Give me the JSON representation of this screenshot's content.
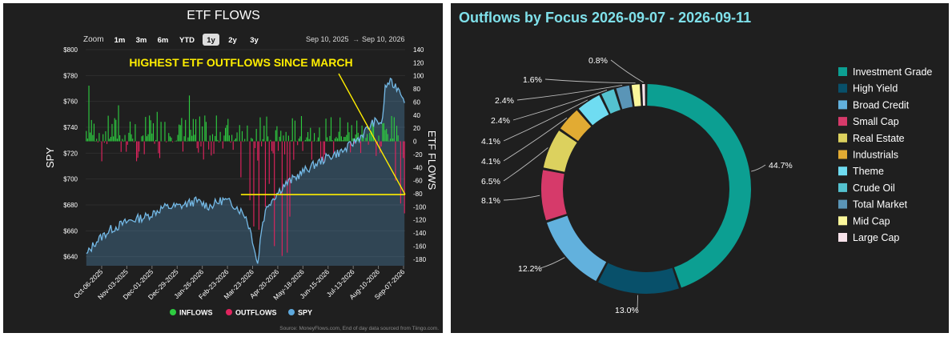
{
  "left": {
    "title": "ETF FLOWS",
    "zoom_label": "Zoom",
    "zoom_options": [
      "1m",
      "3m",
      "6m",
      "YTD",
      "1y",
      "2y",
      "3y"
    ],
    "zoom_selected": "1y",
    "range_from": "Sep 10, 2025",
    "range_arrow": "→",
    "range_to": "Sep 10, 2026",
    "annotation": "HIGHEST ETF OUTFLOWS SINCE MARCH",
    "source": "Source: MoneyFlows.com, End of day data sourced from Tiingo.com.",
    "legend": [
      {
        "label": "INFLOWS",
        "color": "#2ecc40"
      },
      {
        "label": "OUTFLOWS",
        "color": "#e0245e"
      },
      {
        "label": "SPY",
        "color": "#5ea9dd"
      }
    ]
  },
  "chart_data": [
    {
      "type": "bar",
      "title": "ETF FLOWS",
      "ylabel": "SPY",
      "y2label": "ETF FLOWS",
      "ylim": [
        633,
        800
      ],
      "y2lim": [
        -190,
        140
      ],
      "yticks": [
        "$800",
        "$780",
        "$760",
        "$740",
        "$720",
        "$700",
        "$680",
        "$660",
        "$640"
      ],
      "y2ticks": [
        "140",
        "120",
        "100",
        "80",
        "60",
        "40",
        "20",
        "0",
        "-20",
        "-40",
        "-60",
        "-80",
        "-100",
        "-120",
        "-140",
        "-160",
        "-180"
      ],
      "xticks": [
        "Oct-06-2025",
        "Nov-03-2025",
        "Dec-01-2025",
        "Dec-29-2025",
        "Jan-26-2026",
        "Feb-23-2026",
        "Mar-23-2026",
        "Apr-20-2026",
        "May-18-2026",
        "Jun-15-2026",
        "Jul-13-2026",
        "Aug-10-2026",
        "Sep-07-2026"
      ],
      "spy_anchors": [
        [
          0,
          641
        ],
        [
          8,
          651
        ],
        [
          22,
          661
        ],
        [
          40,
          668
        ],
        [
          55,
          671
        ],
        [
          70,
          678
        ],
        [
          85,
          679
        ],
        [
          100,
          683
        ],
        [
          112,
          679
        ],
        [
          125,
          684
        ],
        [
          135,
          680
        ],
        [
          145,
          672
        ],
        [
          150,
          659
        ],
        [
          153,
          648
        ],
        [
          156,
          633
        ],
        [
          160,
          664
        ],
        [
          165,
          680
        ],
        [
          180,
          695
        ],
        [
          200,
          707
        ],
        [
          220,
          717
        ],
        [
          235,
          722
        ],
        [
          250,
          733
        ],
        [
          262,
          744
        ],
        [
          270,
          744
        ],
        [
          272,
          770
        ],
        [
          276,
          775
        ],
        [
          285,
          770
        ],
        [
          290,
          762
        ]
      ],
      "spy_marker_level": 688,
      "flow_pattern": {
        "count": 248,
        "amplitude": 40,
        "seed": 7
      },
      "flow_highlights": [
        [
          2,
          85
        ],
        [
          25,
          55
        ],
        [
          55,
          45
        ],
        [
          80,
          70
        ],
        [
          120,
          -55
        ],
        [
          127,
          -90
        ],
        [
          130,
          -130
        ],
        [
          134,
          -135
        ],
        [
          139,
          -100
        ],
        [
          142,
          -65
        ],
        [
          146,
          -160
        ],
        [
          152,
          -175
        ],
        [
          156,
          -170
        ],
        [
          158,
          -115
        ],
        [
          175,
          -28
        ],
        [
          240,
          -60
        ],
        [
          244,
          -95
        ],
        [
          247,
          -110
        ]
      ],
      "series": [
        {
          "name": "INFLOWS",
          "color": "#2ecc40"
        },
        {
          "name": "OUTFLOWS",
          "color": "#e0245e"
        },
        {
          "name": "SPY",
          "color": "#5ea9dd"
        }
      ]
    },
    {
      "type": "pie",
      "title": "Outflows by Focus 2026-09-07 - 2026-09-11",
      "legend_position": "right",
      "slices": [
        {
          "label": "Investment Grade",
          "value": 44.7,
          "color": "#0c9f92"
        },
        {
          "label": "High Yield",
          "value": 13.0,
          "color": "#08506a"
        },
        {
          "label": "Broad Credit",
          "value": 12.2,
          "color": "#62b1dd"
        },
        {
          "label": "Small Cap",
          "value": 8.1,
          "color": "#d63a6a"
        },
        {
          "label": "Real Estate",
          "value": 6.5,
          "color": "#dcd15e"
        },
        {
          "label": "Industrials",
          "value": 4.1,
          "color": "#e2ab33"
        },
        {
          "label": "Theme",
          "value": 4.1,
          "color": "#6fdcf1"
        },
        {
          "label": "Crude Oil",
          "value": 2.4,
          "color": "#54c2cf"
        },
        {
          "label": "Total Market",
          "value": 2.4,
          "color": "#5a95b7"
        },
        {
          "label": "Mid Cap",
          "value": 1.6,
          "color": "#fbf79b"
        },
        {
          "label": "Large Cap",
          "value": 0.8,
          "color": "#f7e3ea"
        }
      ],
      "data_labels": [
        "44.7%",
        "13.0%",
        "12.2%",
        "8.1%",
        "6.5%",
        "4.1%",
        "4.1%",
        "2.4%",
        "2.4%",
        "1.6%",
        "0.8%"
      ]
    }
  ],
  "right": {
    "title": "Outflows by Focus 2026-09-07 - 2026-09-11"
  }
}
